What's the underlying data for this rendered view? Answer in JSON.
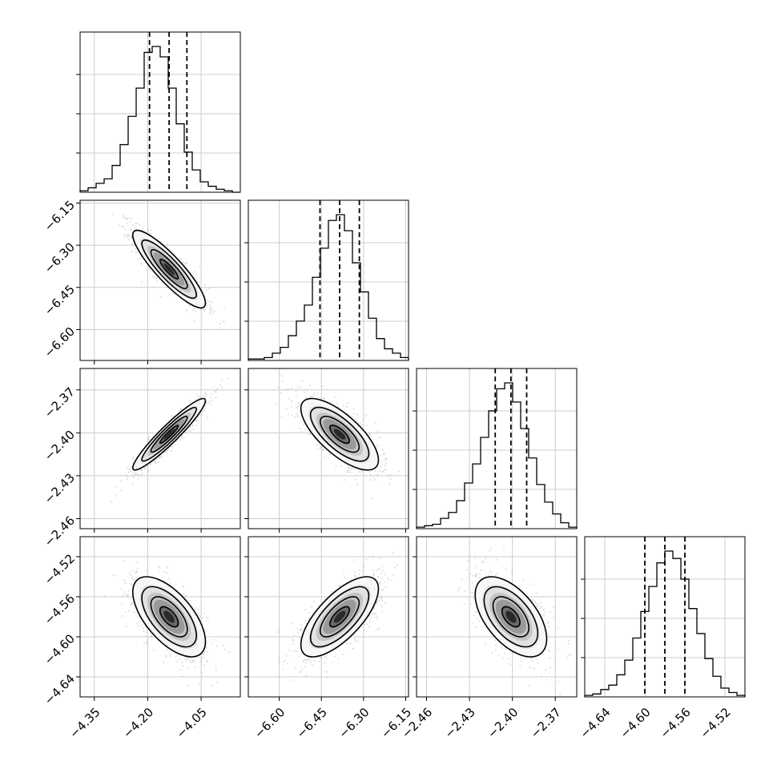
{
  "chart_data": {
    "type": "corner",
    "parameters": [
      {
        "index": 0,
        "range": [
          -4.39,
          -3.94
        ],
        "ticks": [
          -4.35,
          -4.2,
          -4.05
        ],
        "tick_labels": [
          "−4.35",
          "−4.20",
          "−4.05"
        ],
        "quantiles": [
          -4.195,
          -4.14,
          -4.09
        ]
      },
      {
        "index": 1,
        "range": [
          -6.71,
          -6.14
        ],
        "ticks": [
          -6.6,
          -6.45,
          -6.3,
          -6.15
        ],
        "tick_labels": [
          "−6.60",
          "−6.45",
          "−6.30",
          "−6.15"
        ],
        "quantiles": [
          -6.455,
          -6.385,
          -6.315
        ]
      },
      {
        "index": 2,
        "range": [
          -2.467,
          -2.355
        ],
        "ticks": [
          -2.46,
          -2.43,
          -2.4,
          -2.37
        ],
        "tick_labels": [
          "−2.46",
          "−2.43",
          "−2.40",
          "−2.37"
        ],
        "quantiles": [
          -2.412,
          -2.401,
          -2.39
        ]
      },
      {
        "index": 3,
        "range": [
          -4.66,
          -4.5
        ],
        "ticks": [
          -4.64,
          -4.6,
          -4.56,
          -4.52
        ],
        "tick_labels": [
          "−4.64",
          "−4.60",
          "−4.56",
          "−4.52"
        ],
        "quantiles": [
          -4.6,
          -4.58,
          -4.56
        ]
      }
    ],
    "marginals": [
      {
        "param": 0,
        "counts": [
          1,
          3,
          6,
          9,
          18,
          32,
          51,
          70,
          94,
          98,
          91,
          70,
          46,
          27,
          15,
          7,
          4,
          2,
          1,
          0
        ]
      },
      {
        "param": 1,
        "counts": [
          1,
          1,
          2,
          5,
          9,
          17,
          27,
          38,
          57,
          77,
          96,
          100,
          89,
          67,
          47,
          29,
          15,
          8,
          5,
          2
        ]
      },
      {
        "param": 2,
        "counts": [
          1,
          2,
          3,
          7,
          11,
          19,
          31,
          44,
          62,
          80,
          95,
          99,
          86,
          68,
          48,
          30,
          18,
          10,
          4,
          1
        ]
      },
      {
        "param": 3,
        "counts": [
          1,
          2,
          5,
          8,
          15,
          25,
          40,
          58,
          75,
          91,
          99,
          94,
          80,
          60,
          43,
          26,
          14,
          6,
          3,
          1
        ]
      }
    ],
    "pairs": [
      {
        "x": 0,
        "y": 1,
        "mean": [
          -4.14,
          -6.385
        ],
        "std": [
          0.051,
          0.069
        ],
        "corr": -0.88
      },
      {
        "x": 0,
        "y": 2,
        "mean": [
          -4.14,
          -2.401
        ],
        "std": [
          0.051,
          0.0125
        ],
        "corr": 0.94
      },
      {
        "x": 1,
        "y": 2,
        "mean": [
          -6.385,
          -2.401
        ],
        "std": [
          0.069,
          0.0125
        ],
        "corr": -0.72
      },
      {
        "x": 0,
        "y": 3,
        "mean": [
          -4.14,
          -4.58
        ],
        "std": [
          0.051,
          0.02
        ],
        "corr": -0.62
      },
      {
        "x": 1,
        "y": 3,
        "mean": [
          -6.385,
          -4.58
        ],
        "std": [
          0.069,
          0.02
        ],
        "corr": 0.7
      },
      {
        "x": 2,
        "y": 3,
        "mean": [
          -2.401,
          -4.58
        ],
        "std": [
          0.0125,
          0.02
        ],
        "corr": -0.55
      }
    ],
    "contour_levels_sigma": [
      0.5,
      1.0,
      1.5,
      2.0
    ],
    "grid": true,
    "legend": "none"
  }
}
